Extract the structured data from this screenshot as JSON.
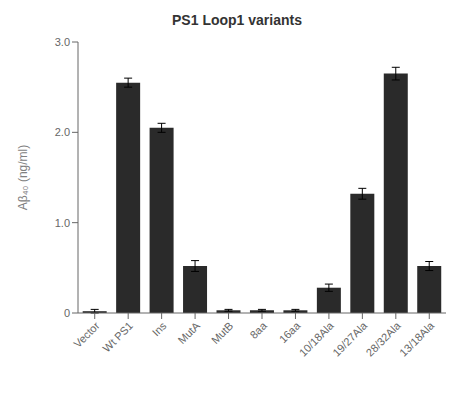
{
  "chart_data": {
    "type": "bar",
    "title": "PS1  Loop1  variants",
    "categories": [
      "Vector",
      "Wt PS1",
      "Ins",
      "MutA",
      "MutB",
      "8aa",
      "16aa",
      "10/18Ala",
      "19/27Ala",
      "28/32Ala",
      "13/18Ala"
    ],
    "values": [
      0.02,
      2.55,
      2.05,
      0.52,
      0.03,
      0.03,
      0.03,
      0.28,
      1.32,
      2.65,
      0.52
    ],
    "errors": [
      0.02,
      0.05,
      0.05,
      0.06,
      0.01,
      0.01,
      0.01,
      0.04,
      0.06,
      0.07,
      0.05
    ],
    "color": "#2a2a2a",
    "y_label": "Aβ₄₀ (ng/ml)",
    "ylim": [
      0,
      3.0
    ],
    "yticks": [
      0,
      {
        "value": 1.0,
        "label": "1.0"
      },
      {
        "value": 2.0,
        "label": "2.0"
      },
      {
        "value": 3.0,
        "label": "3.0"
      }
    ],
    "grid": false
  }
}
